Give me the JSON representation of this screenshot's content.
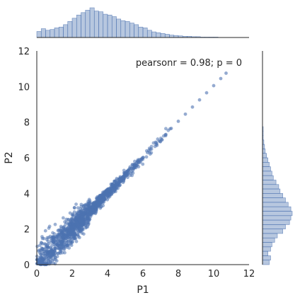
{
  "chart_data": {
    "type": "scatter",
    "subtype": "jointplot-with-marginal-histograms",
    "xlabel": "P1",
    "ylabel": "P2",
    "xlim": [
      0,
      12
    ],
    "ylim": [
      0,
      12
    ],
    "xticks": [
      "0",
      "2",
      "4",
      "6",
      "8",
      "10",
      "12"
    ],
    "yticks": [
      "0",
      "2",
      "4",
      "6",
      "8",
      "10",
      "12"
    ],
    "annotation": "pearsonr = 0.98; p = 0",
    "grid": false,
    "color": "#4c72b0",
    "marginal_x_hist": {
      "bin_start": 0,
      "bin_width": 0.25,
      "counts": [
        15,
        22,
        18,
        20,
        24,
        26,
        32,
        40,
        48,
        56,
        62,
        68,
        74,
        66,
        64,
        58,
        56,
        52,
        46,
        42,
        40,
        36,
        32,
        26,
        24,
        18,
        14,
        12,
        10,
        8,
        6,
        5,
        4,
        3,
        3,
        2,
        2,
        1,
        1,
        1,
        1,
        0,
        0
      ]
    },
    "marginal_y_hist": {
      "bin_start": 0,
      "bin_width": 0.25,
      "counts": [
        10,
        12,
        8,
        12,
        14,
        18,
        22,
        30,
        34,
        40,
        42,
        44,
        42,
        38,
        34,
        30,
        26,
        24,
        20,
        16,
        14,
        12,
        10,
        8,
        6,
        4,
        3,
        2,
        1,
        1,
        1,
        0
      ]
    },
    "points_trend": {
      "description_free": true,
      "slope": 1.0,
      "intercept": 0.0,
      "x_range": [
        0,
        10.7
      ]
    }
  }
}
